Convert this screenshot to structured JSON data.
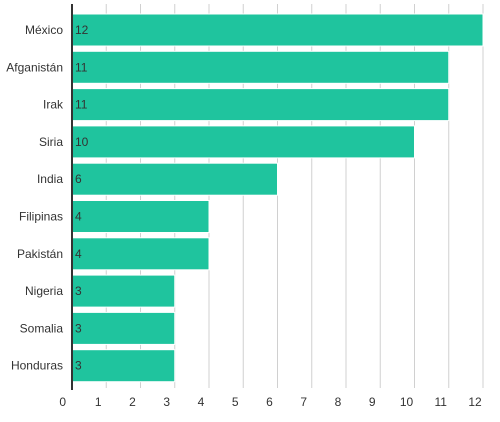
{
  "chart_data": {
    "type": "bar",
    "orientation": "horizontal",
    "categories": [
      "México",
      "Afganistán",
      "Irak",
      "Siria",
      "India",
      "Filipinas",
      "Pakistán",
      "Nigeria",
      "Somalia",
      "Honduras"
    ],
    "values": [
      12,
      11,
      11,
      10,
      6,
      4,
      4,
      3,
      3,
      3
    ],
    "value_labels": [
      "12",
      "11",
      "11",
      "10",
      "6",
      "4",
      "4",
      "3",
      "3",
      "3"
    ],
    "xlim": [
      0,
      12
    ],
    "x_ticks": [
      "0",
      "1",
      "2",
      "3",
      "4",
      "5",
      "6",
      "7",
      "8",
      "9",
      "10",
      "11",
      "12"
    ],
    "grid": "vertical",
    "legend": "none",
    "bar_color": "#1fc49e",
    "bar_outline": "#ffffff"
  }
}
